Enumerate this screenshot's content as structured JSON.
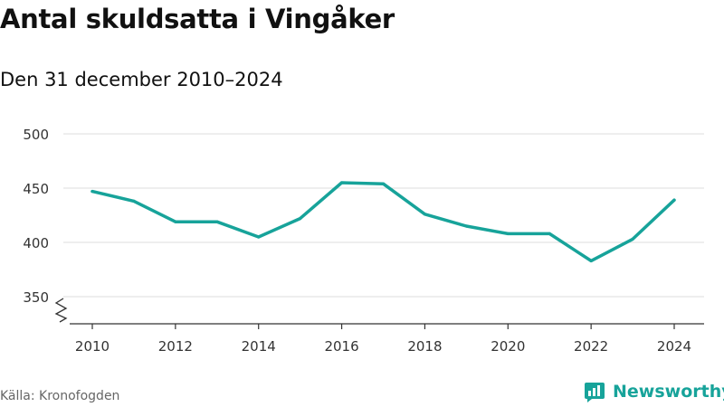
{
  "header": {
    "title": "Antal skuldsatta i Vingåker",
    "subtitle": "Den 31 december 2010–2024"
  },
  "footer": {
    "source": "Källa: Kronofogden",
    "brand": "Newsworthy"
  },
  "colors": {
    "line": "#17a39a",
    "grid": "#dddddd",
    "axis": "#333333",
    "brand": "#17a39a"
  },
  "chart_data": {
    "type": "line",
    "title": "Antal skuldsatta i Vingåker",
    "subtitle": "Den 31 december 2010–2024",
    "xlabel": "",
    "ylabel": "",
    "x": [
      2010,
      2011,
      2012,
      2013,
      2014,
      2015,
      2016,
      2017,
      2018,
      2019,
      2020,
      2021,
      2022,
      2023,
      2024
    ],
    "series": [
      {
        "values": [
          447,
          438,
          419,
          419,
          405,
          422,
          455,
          454,
          426,
          415,
          408,
          408,
          383,
          403,
          439
        ]
      }
    ],
    "x_ticks": [
      2010,
      2012,
      2014,
      2016,
      2018,
      2020,
      2022,
      2024
    ],
    "x_tick_labels": [
      "2010",
      "2012",
      "2014",
      "2016",
      "2018",
      "2020",
      "2022",
      "2024"
    ],
    "y_ticks": [
      350,
      400,
      450,
      500
    ],
    "y_tick_labels": [
      "350",
      "400",
      "450",
      "500"
    ],
    "xlim": [
      2010,
      2024
    ],
    "ylim": [
      340,
      510
    ],
    "grid": "horizontal",
    "legend": "none",
    "axis_break": true,
    "source": "Källa: Kronofogden"
  }
}
